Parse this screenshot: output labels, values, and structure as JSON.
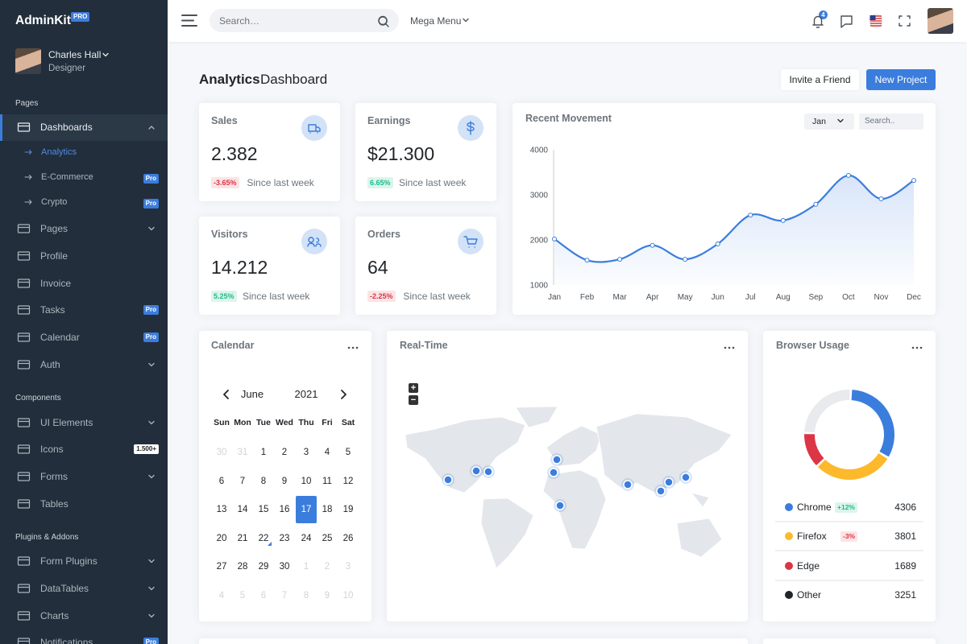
{
  "sidebar": {
    "brand": "AdminKit",
    "brand_badge": "PRO",
    "user": {
      "name": "Charles Hall",
      "role": "Designer"
    },
    "sections": [
      {
        "title": "Pages",
        "items": [
          {
            "label": "Dashboards",
            "dropdown": true,
            "children": [
              {
                "label": "Analytics"
              },
              {
                "label": "E-Commerce",
                "badge": "Pro"
              },
              {
                "label": "Crypto",
                "badge": "Pro"
              }
            ]
          },
          {
            "label": "Pages",
            "dropdown": true
          },
          {
            "label": "Profile"
          },
          {
            "label": "Invoice"
          },
          {
            "label": "Tasks",
            "badge": "Pro"
          },
          {
            "label": "Calendar",
            "badge": "Pro"
          },
          {
            "label": "Auth",
            "dropdown": true
          }
        ]
      },
      {
        "title": "Components",
        "items": [
          {
            "label": "UI Elements",
            "dropdown": true
          },
          {
            "label": "Icons",
            "badge": "1.500+"
          },
          {
            "label": "Forms",
            "dropdown": true
          },
          {
            "label": "Tables"
          }
        ]
      },
      {
        "title": "Plugins & Addons",
        "items": [
          {
            "label": "Form Plugins",
            "dropdown": true
          },
          {
            "label": "DataTables",
            "dropdown": true
          },
          {
            "label": "Charts",
            "dropdown": true
          },
          {
            "label": "Notifications",
            "badge": "Pro"
          }
        ]
      }
    ]
  },
  "topbar": {
    "search_placeholder": "Search…",
    "mega_menu": "Mega Menu",
    "notification_count": "4"
  },
  "header": {
    "title_bold": "Analytics",
    "title_rest": "Dashboard",
    "buttons": [
      "Invite a Friend",
      "New Project"
    ]
  },
  "stats": [
    {
      "title": "Sales",
      "value": "2.382",
      "change": "-3.65%",
      "period": "Since last week"
    },
    {
      "title": "Earnings",
      "value": "$21.300",
      "change": "6.65%",
      "period": "Since last week"
    },
    {
      "title": "Visitors",
      "value": "14.212",
      "change": "5.25%",
      "period": "Since last week"
    },
    {
      "title": "Orders",
      "value": "64",
      "change": "-2.25%",
      "period": "Since last week"
    }
  ],
  "recent_movement": {
    "title": "Recent Movement",
    "filter": "Jan",
    "search_placeholder": "Search..",
    "chart": {
      "type": "line",
      "categories": [
        "Jan",
        "Feb",
        "Mar",
        "Apr",
        "May",
        "Jun",
        "Jul",
        "Aug",
        "Sep",
        "Oct",
        "Nov",
        "Dec"
      ],
      "values": [
        2020,
        1550,
        1570,
        1880,
        1570,
        1910,
        2550,
        2430,
        2790,
        3430,
        2910,
        3320
      ],
      "ylim": [
        1000,
        4000
      ],
      "yticks": [
        1000,
        2000,
        3000,
        4000
      ],
      "color": "#3b7ddd"
    }
  },
  "calendar": {
    "title": "Calendar",
    "month": "June",
    "year": "2021",
    "weekdays": [
      "Sun",
      "Mon",
      "Tue",
      "Wed",
      "Thu",
      "Fri",
      "Sat"
    ],
    "weeks": [
      [
        30,
        31,
        1,
        2,
        3,
        4,
        5
      ],
      [
        6,
        7,
        8,
        9,
        10,
        11,
        12
      ],
      [
        13,
        14,
        15,
        16,
        17,
        18,
        19
      ],
      [
        20,
        21,
        22,
        23,
        24,
        25,
        26
      ],
      [
        27,
        28,
        29,
        30,
        1,
        2,
        3
      ],
      [
        4,
        5,
        6,
        7,
        8,
        9,
        10
      ]
    ]
  },
  "realtime": {
    "title": "Real-Time",
    "zoom_in": "+",
    "zoom_out": "−"
  },
  "browser_usage": {
    "title": "Browser Usage",
    "type": "doughnut",
    "rows": [
      {
        "name": "Chrome",
        "color": "#3b7ddd",
        "change": "+12%",
        "value": 4306
      },
      {
        "name": "Firefox",
        "color": "#fcb92c",
        "change": "-3%",
        "value": 3801
      },
      {
        "name": "Edge",
        "color": "#dc3545",
        "value": 1689
      },
      {
        "name": "Other",
        "color": "#e8eaed",
        "value": 3251
      }
    ]
  }
}
